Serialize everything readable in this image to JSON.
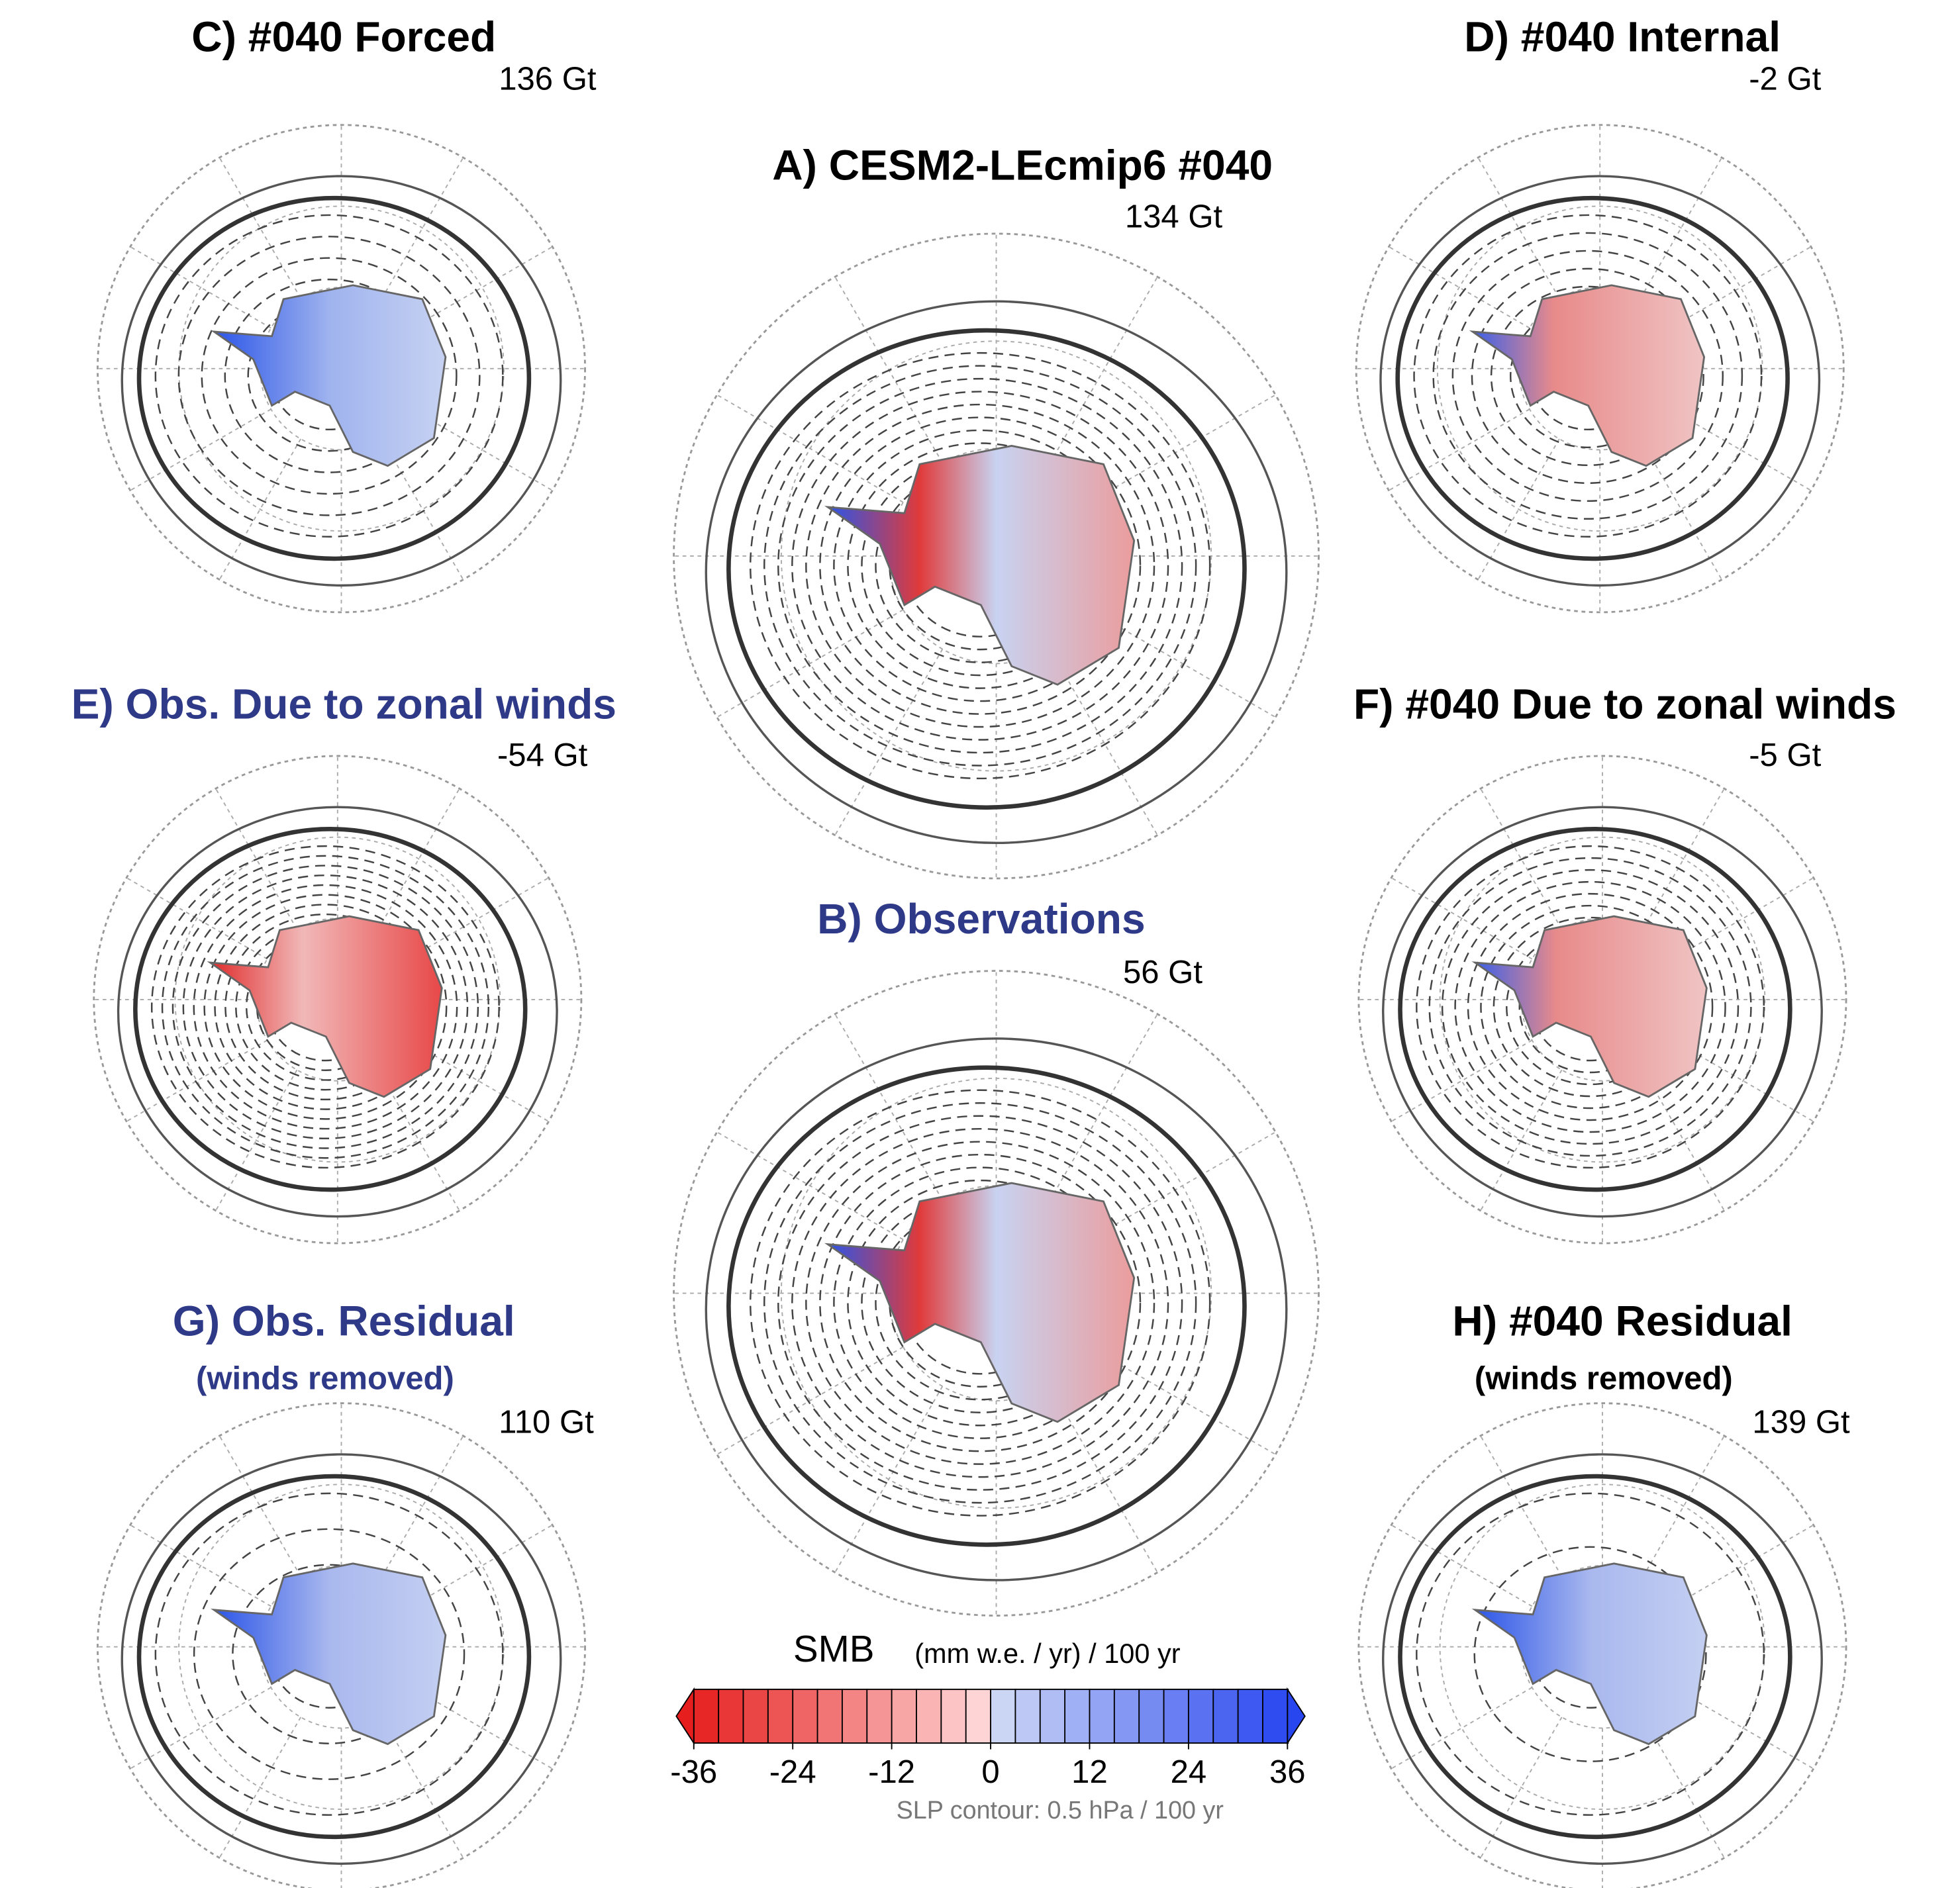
{
  "panels": [
    {
      "title": "C) #040 Forced",
      "value": "136 Gt"
    },
    {
      "title": "D) #040 Internal",
      "value": "-2 Gt"
    },
    {
      "title": "A) CESM2-LEcmip6 #040",
      "value": "134 Gt"
    },
    {
      "title": "E) Obs. Due to zonal winds",
      "value": "-54 Gt"
    },
    {
      "title": "F) #040 Due to zonal winds",
      "value": "-5 Gt"
    },
    {
      "title": "B) Observations",
      "value": "56 Gt"
    },
    {
      "title": "G) Obs. Residual",
      "subtitle": "(winds removed)",
      "value": "110 Gt"
    },
    {
      "title": "H) #040 Residual",
      "subtitle": "(winds removed)",
      "value": "139 Gt"
    }
  ],
  "colorbar": {
    "label": "SMB",
    "units": "(mm w.e. / yr) / 100 yr",
    "lim": [
      -36,
      36
    ],
    "ticks": [
      -36,
      -24,
      -12,
      0,
      12,
      24,
      36
    ],
    "note": "SLP contour: 0.5 hPa / 100 yr"
  }
}
